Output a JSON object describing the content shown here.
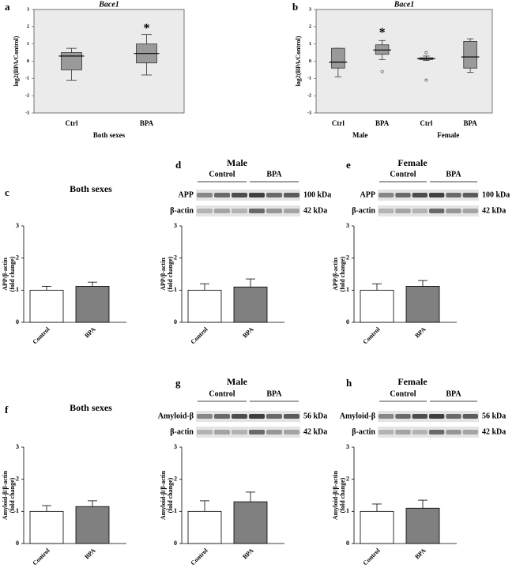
{
  "chart_data": [
    {
      "type": "box",
      "panel": "a",
      "title": "Bace1",
      "ylabel": "log2(BPA/Control)",
      "xlabel": "Both sexes",
      "categories": [
        "Ctrl",
        "BPA"
      ],
      "ylim": [
        -3,
        3
      ],
      "yticks": [
        -3,
        -2,
        -1,
        0,
        1,
        2,
        3
      ],
      "color": "#9a9a9a",
      "boxes": [
        {
          "whislo": -1.1,
          "q1": -0.5,
          "med": 0.3,
          "q3": 0.5,
          "whishi": 0.75,
          "outliers": []
        },
        {
          "whislo": -0.8,
          "q1": -0.1,
          "med": 0.45,
          "q3": 1.0,
          "whishi": 1.55,
          "outliers": []
        }
      ],
      "annotations": [
        {
          "text": "*",
          "x": 1,
          "y": 2.0
        }
      ]
    },
    {
      "type": "box",
      "panel": "b",
      "title": "Bace1",
      "ylabel": "log2(BPA/Control)",
      "groups": [
        "Male",
        "Female"
      ],
      "categories": [
        "Ctrl",
        "BPA",
        "Ctrl",
        "BPA"
      ],
      "ylim": [
        -3,
        3
      ],
      "yticks": [
        -3,
        -2,
        -1,
        0,
        1,
        2,
        3
      ],
      "color": "#9a9a9a",
      "boxes": [
        {
          "whislo": -0.9,
          "q1": -0.4,
          "med": -0.05,
          "q3": 0.75,
          "whishi": 0.75,
          "outliers": []
        },
        {
          "whislo": 0.1,
          "q1": 0.4,
          "med": 0.65,
          "q3": 0.95,
          "whishi": 1.2,
          "outliers": [
            -0.6
          ]
        },
        {
          "whislo": 0.05,
          "q1": 0.1,
          "med": 0.15,
          "q3": 0.2,
          "whishi": 0.3,
          "outliers": [
            0.5,
            -1.1
          ]
        },
        {
          "whislo": -0.65,
          "q1": -0.4,
          "med": 0.25,
          "q3": 1.15,
          "whishi": 1.3,
          "outliers": []
        }
      ],
      "annotations": [
        {
          "text": "*",
          "x": 1,
          "y": 1.75
        }
      ]
    },
    {
      "type": "bar",
      "panel": "c",
      "title": "Both sexes",
      "ylabel": [
        "APP/β-actin",
        "(fold change)"
      ],
      "categories": [
        "Control",
        "BPA"
      ],
      "values": [
        1.0,
        1.12
      ],
      "errors": [
        0.12,
        0.13
      ],
      "colors": [
        "#ffffff",
        "#808080"
      ],
      "ylim": [
        0,
        3
      ],
      "yticks": [
        0,
        1,
        2,
        3
      ]
    },
    {
      "type": "bar",
      "panel": "d",
      "title": "Male",
      "ylabel": [
        "APP/β-actin",
        "(fold change)"
      ],
      "categories": [
        "Control",
        "BPA"
      ],
      "values": [
        1.0,
        1.1
      ],
      "errors": [
        0.2,
        0.25
      ],
      "colors": [
        "#ffffff",
        "#808080"
      ],
      "ylim": [
        0,
        3
      ],
      "yticks": [
        0,
        1,
        2,
        3
      ],
      "blot": {
        "groups": [
          "Control",
          "BPA"
        ],
        "rows": [
          {
            "label": "APP",
            "size": "100 kDa"
          },
          {
            "label": "β-actin",
            "size": "42 kDa"
          }
        ]
      }
    },
    {
      "type": "bar",
      "panel": "e",
      "title": "Female",
      "ylabel": [
        "APP/β-actin",
        "(fold change)"
      ],
      "categories": [
        "Control",
        "BPA"
      ],
      "values": [
        1.0,
        1.12
      ],
      "errors": [
        0.2,
        0.18
      ],
      "colors": [
        "#ffffff",
        "#808080"
      ],
      "ylim": [
        0,
        3
      ],
      "yticks": [
        0,
        1,
        2,
        3
      ],
      "blot": {
        "groups": [
          "Control",
          "BPA"
        ],
        "rows": [
          {
            "label": "APP",
            "size": "100 kDa"
          },
          {
            "label": "β-actin",
            "size": "42 kDa"
          }
        ]
      }
    },
    {
      "type": "bar",
      "panel": "f",
      "title": "Both sexes",
      "ylabel": [
        "Amyloid-β/β-actin",
        "(fold change)"
      ],
      "categories": [
        "Control",
        "BPA"
      ],
      "values": [
        1.0,
        1.15
      ],
      "errors": [
        0.18,
        0.18
      ],
      "colors": [
        "#ffffff",
        "#808080"
      ],
      "ylim": [
        0,
        3
      ],
      "yticks": [
        0,
        1,
        2,
        3
      ]
    },
    {
      "type": "bar",
      "panel": "g",
      "title": "Male",
      "ylabel": [
        "Amyloid-β/β-actin",
        "(fold change)"
      ],
      "categories": [
        "Control",
        "BPA"
      ],
      "values": [
        1.0,
        1.3
      ],
      "errors": [
        0.33,
        0.3
      ],
      "colors": [
        "#ffffff",
        "#808080"
      ],
      "ylim": [
        0,
        3
      ],
      "yticks": [
        0,
        1,
        2,
        3
      ],
      "blot": {
        "groups": [
          "Control",
          "BPA"
        ],
        "rows": [
          {
            "label": "Amyloid-β",
            "size": "56 kDa"
          },
          {
            "label": "β-actin",
            "size": "42 kDa"
          }
        ]
      }
    },
    {
      "type": "bar",
      "panel": "h",
      "title": "Female",
      "ylabel": [
        "Amyloid-β/β-actin",
        "(fold change)"
      ],
      "categories": [
        "Control",
        "BPA"
      ],
      "values": [
        1.0,
        1.1
      ],
      "errors": [
        0.23,
        0.25
      ],
      "colors": [
        "#ffffff",
        "#808080"
      ],
      "ylim": [
        0,
        3
      ],
      "yticks": [
        0,
        1,
        2,
        3
      ],
      "blot": {
        "groups": [
          "Control",
          "BPA"
        ],
        "rows": [
          {
            "label": "Amyloid-β",
            "size": "56 kDa"
          },
          {
            "label": "β-actin",
            "size": "42 kDa"
          }
        ]
      }
    }
  ]
}
